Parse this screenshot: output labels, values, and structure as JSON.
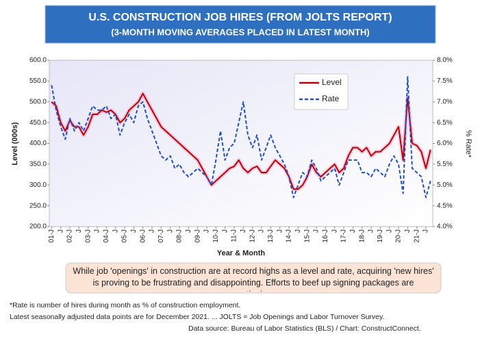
{
  "chart_data": {
    "type": "line",
    "title": "U.S. CONSTRUCTION JOB HIRES (FROM JOLTS REPORT)",
    "subtitle": "(3-MONTH MOVING AVERAGES PLACED IN LATEST MONTH)",
    "ylabel": "Level (000s)",
    "y2label": "% Rate*",
    "xlabel": "Year & Month",
    "annotation": "While job 'openings' in construction are at record highs as a level and rate, acquiring 'new hires' is proving to be frustrating and disappointing. Efforts to beef up signing packages are continuing.",
    "footnotes": [
      "*Rate is number of hires during month as % of construction employment.",
      "Latest seasonally adjusted data points are for December 2021. ... JOLTS = Job Openings and Labor Turnover Survey.",
      "Data source: Bureau of Labor Statistics (BLS) / Chart: ConstructConnect."
    ],
    "categories": [
      "01-J",
      null,
      "J",
      null,
      "02-J",
      null,
      "J",
      null,
      "03-J",
      null,
      "J",
      null,
      "04-J",
      null,
      "J",
      null,
      "05-J",
      null,
      "J",
      null,
      "06-J",
      null,
      "J",
      null,
      "07-J",
      null,
      "J",
      null,
      "08-J",
      null,
      "J",
      null,
      "09-J",
      null,
      "J",
      null,
      "10-J",
      null,
      "J",
      null,
      "11-J",
      null,
      "J",
      null,
      "12-J",
      null,
      "J",
      null,
      "13-J",
      null,
      "J",
      null,
      "14-J",
      null,
      "J",
      null,
      "15-J",
      null,
      "J",
      null,
      "16-J",
      null,
      "J",
      null,
      "17-J",
      null,
      "J",
      null,
      "18-J",
      null,
      "J",
      null,
      "19-J",
      null,
      "J",
      null,
      "20-J",
      null,
      "J",
      null,
      "21-J",
      null,
      "J",
      null
    ],
    "series": [
      {
        "name": "Level",
        "color": "#c00000",
        "values": [
          500,
          490,
          450,
          430,
          455,
          440,
          440,
          420,
          440,
          470,
          470,
          480,
          475,
          480,
          470,
          450,
          460,
          480,
          490,
          500,
          520,
          500,
          480,
          460,
          440,
          430,
          420,
          410,
          400,
          390,
          380,
          370,
          360,
          340,
          320,
          300,
          310,
          320,
          330,
          340,
          345,
          360,
          340,
          330,
          340,
          345,
          330,
          330,
          345,
          360,
          350,
          340,
          320,
          290,
          290,
          300,
          320,
          350,
          330,
          320,
          330,
          340,
          350,
          330,
          340,
          370,
          390,
          390,
          380,
          390,
          370,
          380,
          380,
          390,
          400,
          420,
          440,
          360,
          510,
          400,
          395,
          380,
          340,
          385
        ]
      },
      {
        "name": "Rate",
        "color": "#1f4fc4",
        "axis": "y2",
        "values": [
          7.4,
          6.8,
          6.4,
          6.1,
          6.6,
          6.3,
          6.5,
          6.3,
          6.6,
          6.9,
          6.8,
          6.8,
          6.9,
          6.6,
          6.7,
          6.2,
          6.5,
          6.7,
          6.5,
          6.9,
          7.0,
          6.6,
          6.3,
          6.0,
          5.7,
          5.6,
          5.7,
          5.4,
          5.5,
          5.3,
          5.2,
          5.3,
          5.4,
          5.3,
          5.2,
          5.0,
          5.6,
          6.3,
          5.6,
          5.9,
          6.0,
          6.5,
          7.0,
          6.2,
          5.9,
          6.2,
          5.6,
          5.9,
          6.2,
          5.9,
          5.7,
          5.5,
          5.2,
          4.7,
          5.0,
          5.3,
          5.2,
          5.6,
          5.4,
          5.1,
          5.2,
          5.3,
          5.4,
          5.0,
          5.3,
          5.6,
          5.6,
          5.6,
          5.3,
          5.3,
          5.2,
          5.4,
          5.3,
          5.2,
          5.5,
          5.7,
          5.5,
          4.8,
          7.6,
          5.4,
          5.3,
          5.2,
          4.7,
          5.1
        ]
      }
    ],
    "ylim": [
      200,
      600
    ],
    "yticks": [
      {
        "value": 200,
        "label": "200.0"
      },
      {
        "value": 250,
        "label": "250.0"
      },
      {
        "value": 300,
        "label": "300.0"
      },
      {
        "value": 350,
        "label": "350.0"
      },
      {
        "value": 400,
        "label": "400.0"
      },
      {
        "value": 450,
        "label": "450.0"
      },
      {
        "value": 500,
        "label": "500.0"
      },
      {
        "value": 550,
        "label": "550.0"
      },
      {
        "value": 600,
        "label": "600.0"
      }
    ],
    "y2lim": [
      4,
      8
    ],
    "y2ticks": [
      {
        "value": 4,
        "label": "4.0%"
      },
      {
        "value": 4.5,
        "label": "4.5%"
      },
      {
        "value": 5,
        "label": "5.0%"
      },
      {
        "value": 5.5,
        "label": "5.5%"
      },
      {
        "value": 6,
        "label": "6.0%"
      },
      {
        "value": 6.5,
        "label": "6.5%"
      },
      {
        "value": 7,
        "label": "7.0%"
      },
      {
        "value": 7.5,
        "label": "7.5%"
      },
      {
        "value": 8,
        "label": "8.0%"
      }
    ],
    "legend": "upper right"
  }
}
